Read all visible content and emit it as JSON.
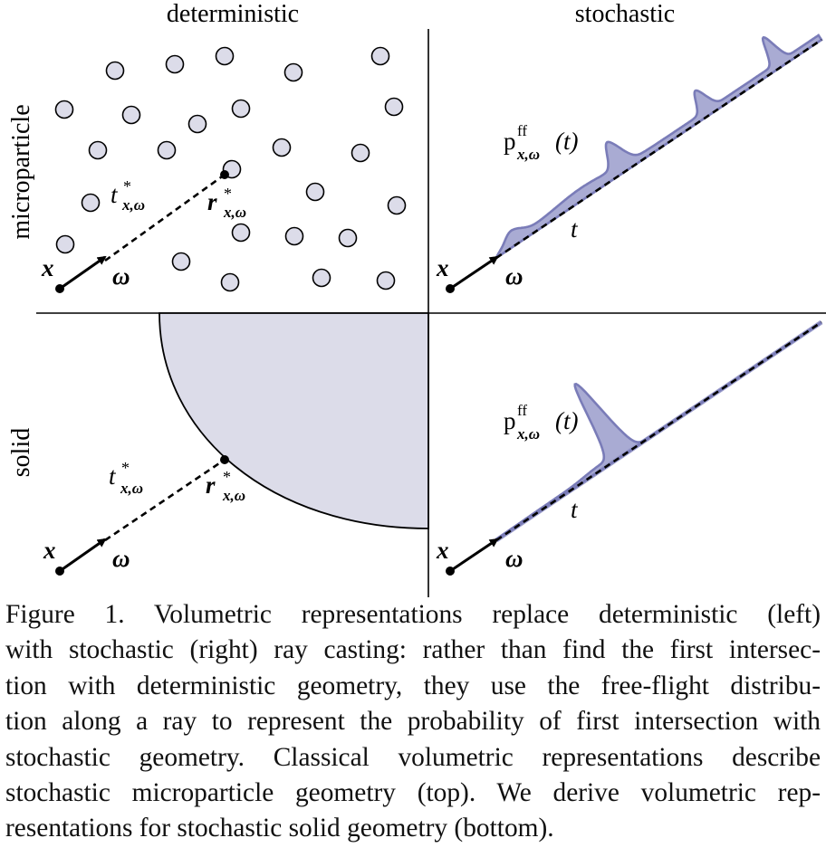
{
  "columns": {
    "left": "deterministic",
    "right": "stochastic"
  },
  "rows": {
    "top": "microparticle",
    "bottom": "solid"
  },
  "symbols": {
    "origin": "x",
    "direction": "ω",
    "t_star_base": "t",
    "r_star_base": "r",
    "star": "*",
    "subscript": "x,ω",
    "pff_base": "p",
    "pff_sup": "ff",
    "pff_arg": "(t)",
    "t": "t"
  },
  "colors": {
    "particle_fill": "#dcdce9",
    "solid_fill": "#dcdce9",
    "density_fill": "#9a9ccb",
    "density_stroke": "#7a7cb8",
    "line": "#000000"
  },
  "caption": [
    "Figure 1.  Volumetric representations replace deterministic (left)",
    "with stochastic (right) ray casting: rather than find the first intersec-",
    "tion with deterministic geometry, they use the free-flight distribu-",
    "tion along a ray to represent the probability of first intersection with",
    "stochastic geometry. Classical volumetric representations describe",
    "stochastic microparticle geometry (top). We derive volumetric rep-",
    "resentations for stochastic solid geometry (bottom)."
  ]
}
